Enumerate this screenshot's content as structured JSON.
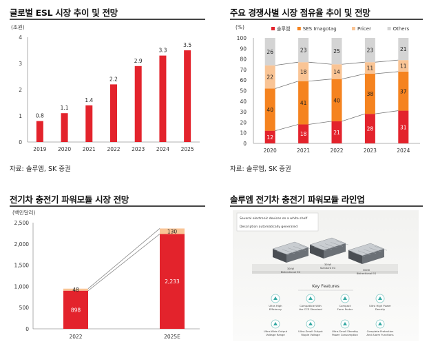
{
  "panels": {
    "p1": {
      "title": "글로벌 ESL 시장 추이 및 전망",
      "source": "자료: 솔루엠, SK 증권"
    },
    "p2": {
      "title": "주요 경쟁사별 시장 점유율 추이 및 전망",
      "source": "자료: 솔루엠, SK 증권"
    },
    "p3": {
      "title": "전기차 충전기 파워모듈 시장 전망"
    },
    "p4": {
      "title": "솔루엠 전기차 충전기 파워모듈 라인업"
    }
  },
  "colors": {
    "red": "#e3232c",
    "orange": "#f5831f",
    "peach": "#f9c495",
    "grey": "#d4d4d4",
    "line": "#777777"
  },
  "chart_data": [
    {
      "type": "bar",
      "title": "글로벌 ESL 시장 추이 및 전망",
      "unit": "(조원)",
      "categories": [
        "2019",
        "2020",
        "2021",
        "2022",
        "2023",
        "2024",
        "2025"
      ],
      "values": [
        0.8,
        1.1,
        1.4,
        2.2,
        2.9,
        3.3,
        3.5
      ],
      "value_labels": [
        "0.8",
        "1.1",
        "1.4",
        "2.2",
        "2.9",
        "3.3",
        "3.5"
      ],
      "ylim": [
        0,
        4
      ],
      "yticks": [
        "0",
        "1",
        "2",
        "3",
        "4"
      ],
      "grid": false
    },
    {
      "type": "bar",
      "stacked": true,
      "title": "주요 경쟁사별 시장 점유율 추이 및 전망",
      "unit": "(%)",
      "categories": [
        "2020",
        "2021",
        "2022",
        "2023",
        "2024"
      ],
      "ylim": [
        0,
        100
      ],
      "yticks": [
        "0",
        "10",
        "20",
        "30",
        "40",
        "50",
        "60",
        "70",
        "80",
        "90",
        "100"
      ],
      "legend_position": "top",
      "series": [
        {
          "name": "솔루엠",
          "values": [
            12,
            18,
            21,
            28,
            31
          ]
        },
        {
          "name": "SES Imagotag",
          "values": [
            40,
            41,
            40,
            38,
            37
          ]
        },
        {
          "name": "Pricer",
          "values": [
            22,
            18,
            14,
            11,
            11
          ]
        },
        {
          "name": "Others",
          "values": [
            26,
            23,
            25,
            23,
            21
          ]
        }
      ],
      "connector_lines": true
    },
    {
      "type": "bar",
      "stacked": true,
      "title": "전기차 충전기 파워모듈 시장 전망",
      "unit": "(백만달러)",
      "categories": [
        "2022",
        "2025E"
      ],
      "ylim": [
        0,
        2500
      ],
      "yticks": [
        "0",
        "500",
        "1,000",
        "1,500",
        "2,000",
        "2,500"
      ],
      "series": [
        {
          "values": [
            898,
            2233
          ],
          "labels": [
            "898",
            "2,233"
          ]
        },
        {
          "values": [
            48,
            130
          ],
          "labels": [
            "48",
            "130"
          ]
        }
      ],
      "connector_lines": true
    }
  ],
  "lineup_image": {
    "tooltip_lines": [
      "Several electronic devices on a white shelf",
      "Description automatically generated"
    ],
    "product_labels": [
      [
        "30kW",
        "Bidirectional EG"
      ],
      [
        "30kW",
        "Standard EG"
      ],
      [
        "30kW",
        "Bidirectional EG"
      ]
    ],
    "heading": "Key Features",
    "features": [
      {
        "icon": "thermometer-icon",
        "label": [
          "Ultra High",
          "Efficiency"
        ]
      },
      {
        "icon": "shield-icon",
        "label": [
          "Compatible With",
          "the CCS Standard"
        ]
      },
      {
        "icon": "plug-icon",
        "label": [
          "Compact",
          "Form Factor"
        ]
      },
      {
        "icon": "chip-icon",
        "label": [
          "Ultra High Power",
          "Density"
        ]
      },
      {
        "icon": "wave-icon",
        "label": [
          "Ultra-Wide Output",
          "Voltage Range"
        ]
      },
      {
        "icon": "ripple-icon",
        "label": [
          "Ultra-Small Output",
          "Ripple Voltage"
        ]
      },
      {
        "icon": "standby-icon",
        "label": [
          "Ultra-Small Standby",
          "Power Consumption"
        ]
      },
      {
        "icon": "protection-icon",
        "label": [
          "Complete Protection",
          "And Alarm Functions"
        ]
      }
    ]
  }
}
